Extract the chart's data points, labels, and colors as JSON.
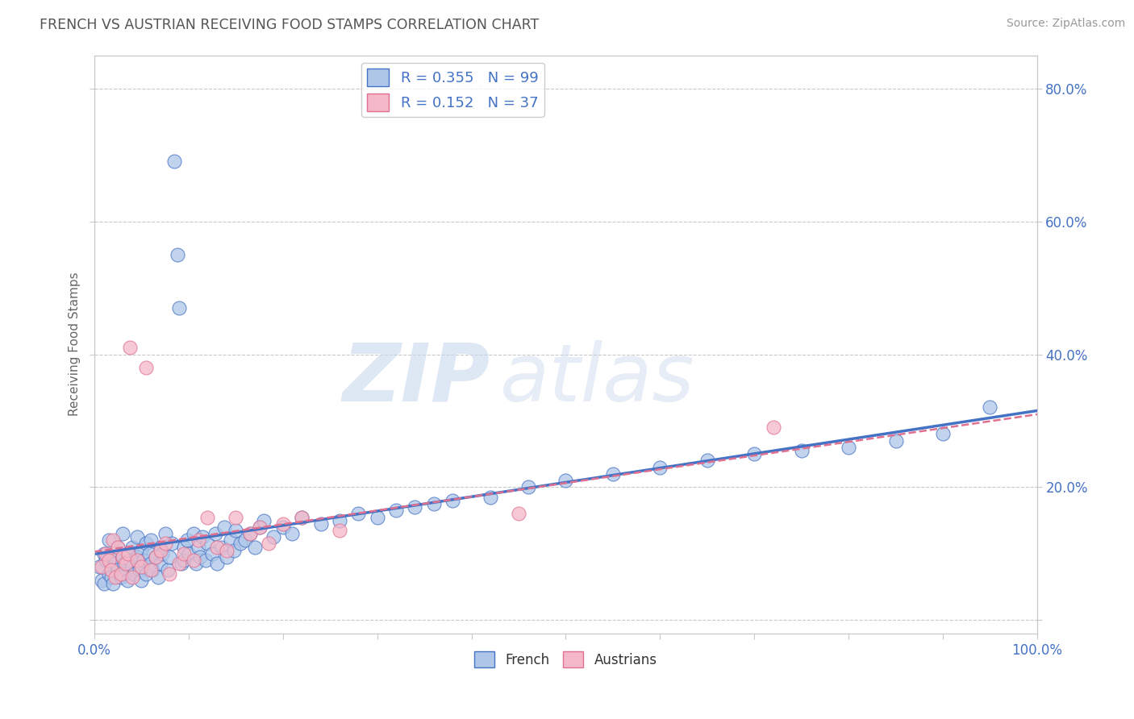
{
  "title": "FRENCH VS AUSTRIAN RECEIVING FOOD STAMPS CORRELATION CHART",
  "source": "Source: ZipAtlas.com",
  "ylabel": "Receiving Food Stamps",
  "xlabel": "",
  "xlim": [
    0.0,
    1.0
  ],
  "ylim": [
    -0.02,
    0.85
  ],
  "xticks": [
    0.0,
    0.1,
    0.2,
    0.3,
    0.4,
    0.5,
    0.6,
    0.7,
    0.8,
    0.9,
    1.0
  ],
  "xticklabels": [
    "0.0%",
    "",
    "",
    "",
    "",
    "",
    "",
    "",
    "",
    "",
    "100.0%"
  ],
  "ytick_positions": [
    0.0,
    0.2,
    0.4,
    0.6,
    0.8
  ],
  "yticklabels_right": [
    "",
    "20.0%",
    "40.0%",
    "60.0%",
    "80.0%"
  ],
  "french_color": "#aec6e8",
  "austrian_color": "#f4b8c8",
  "french_line_color": "#4472c4",
  "austrian_line_color": "#e07090",
  "french_R": 0.355,
  "french_N": 99,
  "austrian_R": 0.152,
  "austrian_N": 37,
  "watermark_zip": "ZIP",
  "watermark_atlas": "atlas",
  "background_color": "#ffffff",
  "grid_color": "#c8c8c8",
  "title_color": "#555555",
  "label_color": "#4472c4",
  "french_scatter_x": [
    0.005,
    0.008,
    0.01,
    0.01,
    0.012,
    0.015,
    0.015,
    0.018,
    0.02,
    0.02,
    0.022,
    0.025,
    0.025,
    0.028,
    0.03,
    0.03,
    0.03,
    0.032,
    0.035,
    0.035,
    0.038,
    0.04,
    0.04,
    0.042,
    0.045,
    0.045,
    0.048,
    0.05,
    0.05,
    0.052,
    0.055,
    0.055,
    0.058,
    0.06,
    0.06,
    0.062,
    0.065,
    0.068,
    0.07,
    0.07,
    0.072,
    0.075,
    0.078,
    0.08,
    0.082,
    0.085,
    0.088,
    0.09,
    0.092,
    0.095,
    0.095,
    0.098,
    0.1,
    0.105,
    0.108,
    0.11,
    0.112,
    0.115,
    0.118,
    0.12,
    0.125,
    0.128,
    0.13,
    0.135,
    0.138,
    0.14,
    0.145,
    0.148,
    0.15,
    0.155,
    0.16,
    0.165,
    0.17,
    0.175,
    0.18,
    0.19,
    0.2,
    0.21,
    0.22,
    0.24,
    0.26,
    0.28,
    0.3,
    0.32,
    0.34,
    0.36,
    0.38,
    0.42,
    0.46,
    0.5,
    0.55,
    0.6,
    0.65,
    0.7,
    0.75,
    0.8,
    0.85,
    0.9,
    0.95
  ],
  "french_scatter_y": [
    0.08,
    0.06,
    0.1,
    0.055,
    0.09,
    0.07,
    0.12,
    0.065,
    0.095,
    0.055,
    0.085,
    0.075,
    0.11,
    0.065,
    0.095,
    0.07,
    0.13,
    0.085,
    0.1,
    0.06,
    0.09,
    0.08,
    0.11,
    0.07,
    0.095,
    0.125,
    0.075,
    0.105,
    0.06,
    0.09,
    0.115,
    0.07,
    0.1,
    0.085,
    0.12,
    0.075,
    0.095,
    0.065,
    0.11,
    0.085,
    0.1,
    0.13,
    0.075,
    0.095,
    0.115,
    0.69,
    0.55,
    0.47,
    0.085,
    0.11,
    0.09,
    0.12,
    0.1,
    0.13,
    0.085,
    0.11,
    0.095,
    0.125,
    0.09,
    0.115,
    0.1,
    0.13,
    0.085,
    0.11,
    0.14,
    0.095,
    0.12,
    0.105,
    0.135,
    0.115,
    0.12,
    0.13,
    0.11,
    0.14,
    0.15,
    0.125,
    0.14,
    0.13,
    0.155,
    0.145,
    0.15,
    0.16,
    0.155,
    0.165,
    0.17,
    0.175,
    0.18,
    0.185,
    0.2,
    0.21,
    0.22,
    0.23,
    0.24,
    0.25,
    0.255,
    0.26,
    0.27,
    0.28,
    0.32
  ],
  "austrian_scatter_x": [
    0.008,
    0.012,
    0.015,
    0.018,
    0.02,
    0.022,
    0.025,
    0.028,
    0.03,
    0.033,
    0.036,
    0.038,
    0.04,
    0.045,
    0.05,
    0.055,
    0.06,
    0.065,
    0.07,
    0.075,
    0.08,
    0.09,
    0.095,
    0.105,
    0.11,
    0.12,
    0.13,
    0.14,
    0.15,
    0.165,
    0.175,
    0.185,
    0.2,
    0.22,
    0.26,
    0.45,
    0.72
  ],
  "austrian_scatter_y": [
    0.08,
    0.1,
    0.09,
    0.075,
    0.12,
    0.065,
    0.11,
    0.07,
    0.095,
    0.085,
    0.1,
    0.41,
    0.065,
    0.09,
    0.08,
    0.38,
    0.075,
    0.095,
    0.105,
    0.115,
    0.07,
    0.085,
    0.1,
    0.09,
    0.12,
    0.155,
    0.11,
    0.105,
    0.155,
    0.13,
    0.14,
    0.115,
    0.145,
    0.155,
    0.135,
    0.16,
    0.29
  ]
}
